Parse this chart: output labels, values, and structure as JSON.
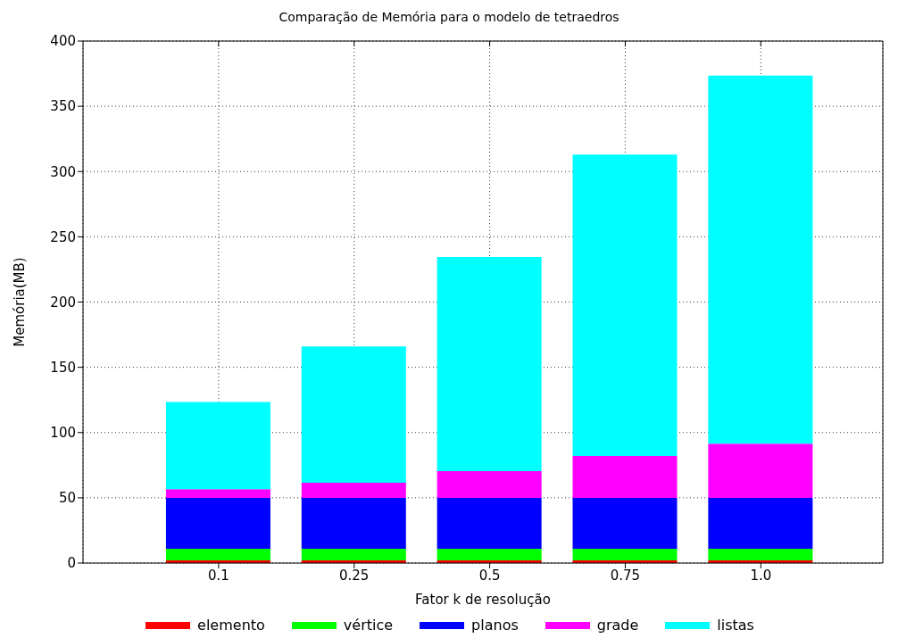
{
  "chart_data": {
    "type": "bar",
    "title": "Comparação de Memória para o modelo de tetraedros",
    "xlabel": "Fator k de resolução",
    "ylabel": "Memória(MB)",
    "categories": [
      "0.1",
      "0.25",
      "0.5",
      "0.75",
      "1.0"
    ],
    "stacked": true,
    "ylim": [
      0,
      400
    ],
    "yticks": [
      0,
      50,
      100,
      150,
      200,
      250,
      300,
      350,
      400
    ],
    "grid": true,
    "legend": "bottom",
    "series": [
      {
        "name": "elemento",
        "color": "#ff0000",
        "values": [
          2,
          2,
          2,
          2,
          2
        ]
      },
      {
        "name": "vértice",
        "color": "#00ff00",
        "values": [
          9,
          9,
          9,
          9,
          9
        ]
      },
      {
        "name": "planos",
        "color": "#0000ff",
        "values": [
          39,
          39,
          39,
          39,
          39
        ]
      },
      {
        "name": "grade",
        "color": "#ff00ff",
        "values": [
          6.5,
          11.5,
          20.5,
          32,
          41.5
        ]
      },
      {
        "name": "listas",
        "color": "#00ffff",
        "values": [
          67,
          104.5,
          164,
          231,
          282
        ]
      }
    ]
  }
}
